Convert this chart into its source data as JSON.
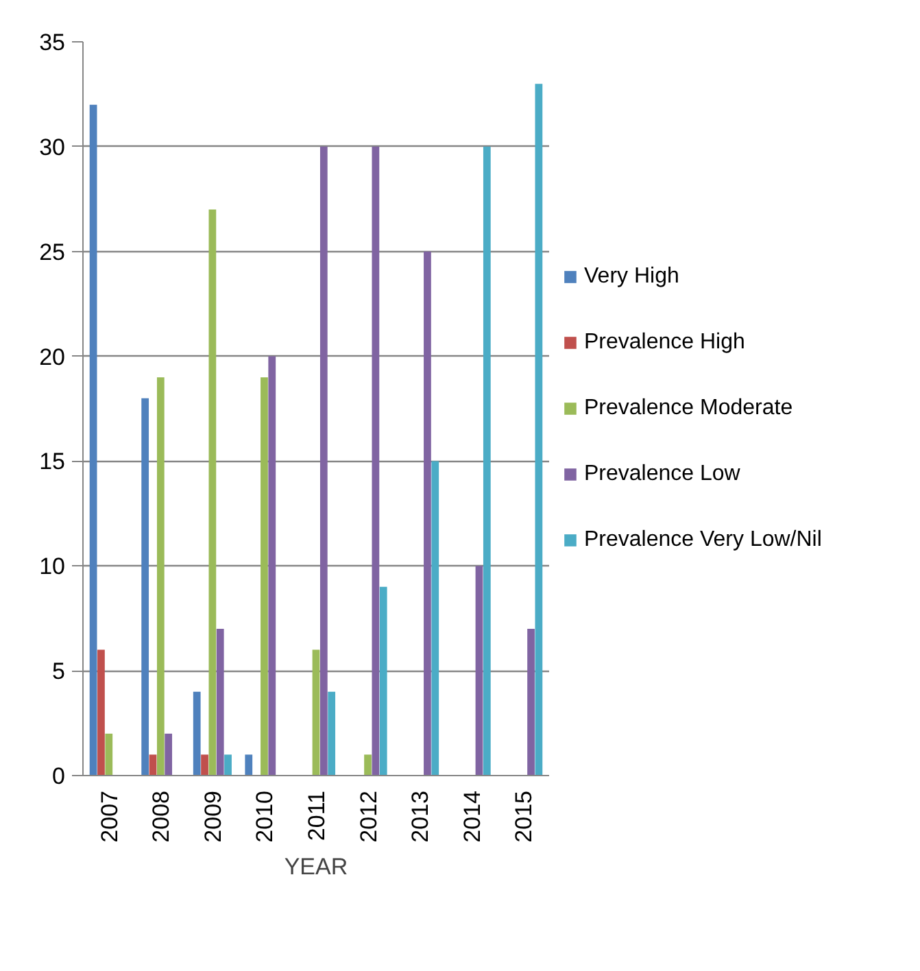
{
  "chart_data": {
    "type": "bar",
    "xlabel": "YEAR",
    "categories": [
      "2007",
      "2008",
      "2009",
      "2010",
      "2011",
      "2012",
      "2013",
      "2014",
      "2015"
    ],
    "series": [
      {
        "name": "Very High",
        "color": "#4f81bd",
        "values": [
          32,
          18,
          4,
          1,
          0,
          0,
          0,
          0,
          0
        ]
      },
      {
        "name": "Prevalence High",
        "color": "#c0504d",
        "values": [
          6,
          1,
          1,
          0,
          0,
          0,
          0,
          0,
          0
        ]
      },
      {
        "name": "Prevalence Moderate",
        "color": "#9bbb59",
        "values": [
          2,
          19,
          27,
          19,
          6,
          1,
          0,
          0,
          0
        ]
      },
      {
        "name": "Prevalence Low",
        "color": "#8064a2",
        "values": [
          0,
          2,
          7,
          20,
          30,
          30,
          25,
          10,
          7
        ]
      },
      {
        "name": "Prevalence Very Low/Nil",
        "color": "#4bacc6",
        "values": [
          0,
          0,
          1,
          0,
          4,
          9,
          15,
          30,
          33
        ]
      }
    ],
    "ylim": [
      0,
      35
    ],
    "yticks": [
      0,
      5,
      10,
      15,
      20,
      25,
      30,
      35
    ],
    "grid": "y",
    "legend": "right"
  }
}
